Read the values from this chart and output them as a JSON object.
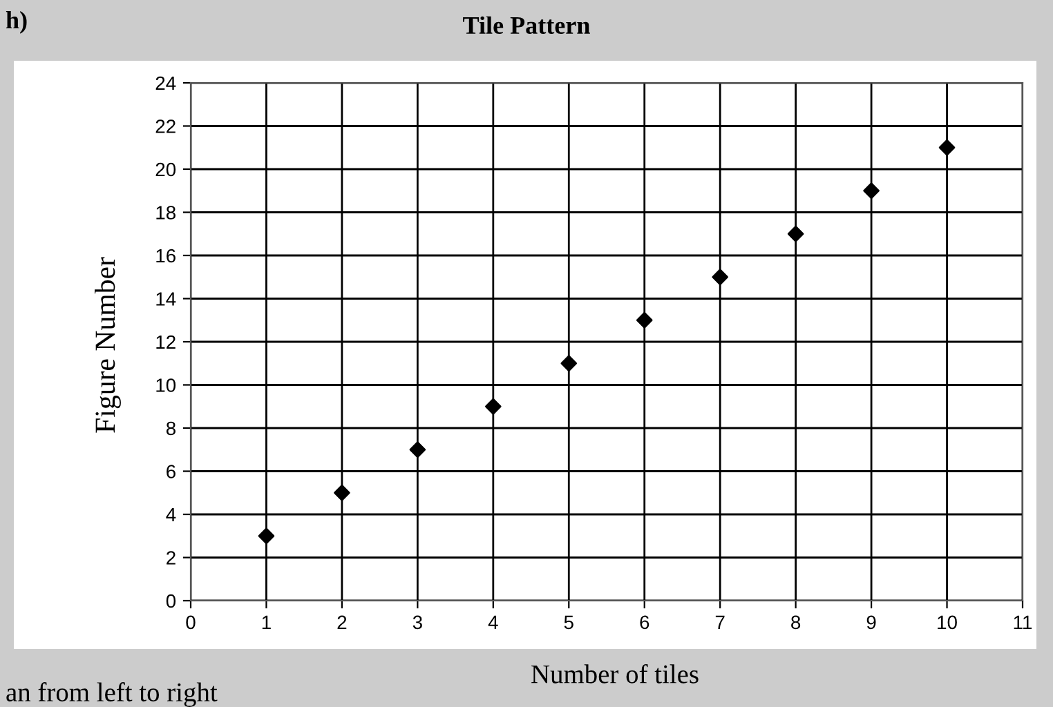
{
  "chart_data": {
    "type": "scatter",
    "title": "Tile Pattern",
    "xlabel": "Number of tiles",
    "ylabel": "Figure Number",
    "x": [
      1,
      2,
      3,
      4,
      5,
      6,
      7,
      8,
      9,
      10
    ],
    "series": [
      {
        "color": "#000000",
        "values": [
          3,
          5,
          7,
          9,
          11,
          13,
          15,
          17,
          19,
          21
        ]
      }
    ],
    "xlim": [
      0,
      11
    ],
    "xticks": [
      0,
      1,
      2,
      3,
      4,
      5,
      6,
      7,
      8,
      9,
      10,
      11
    ],
    "ylim": [
      0,
      24
    ],
    "yticks": [
      0,
      2,
      4,
      6,
      8,
      10,
      12,
      14,
      16,
      18,
      20,
      22,
      24
    ],
    "grid": true,
    "marker": "diamond",
    "annotations": [
      "h)",
      "an from left to right"
    ]
  }
}
